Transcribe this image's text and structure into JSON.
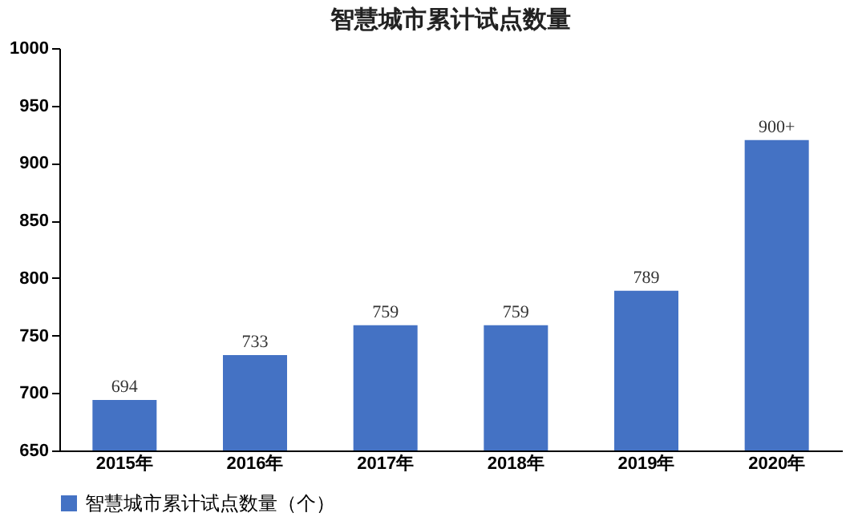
{
  "chart_data": {
    "type": "bar",
    "title": "智慧城市累计试点数量",
    "categories": [
      "2015年",
      "2016年",
      "2017年",
      "2018年",
      "2019年",
      "2020年"
    ],
    "series": [
      {
        "name": "智慧城市累计试点数量（个）",
        "color": "#4472c4",
        "values": [
          694,
          733,
          759,
          759,
          789,
          920
        ]
      }
    ],
    "value_labels": [
      "694",
      "733",
      "759",
      "759",
      "789",
      "900+"
    ],
    "ylim": [
      650,
      1000
    ],
    "yticks": [
      650,
      700,
      750,
      800,
      850,
      900,
      950,
      1000
    ],
    "grid": false,
    "legend": "bottom"
  }
}
